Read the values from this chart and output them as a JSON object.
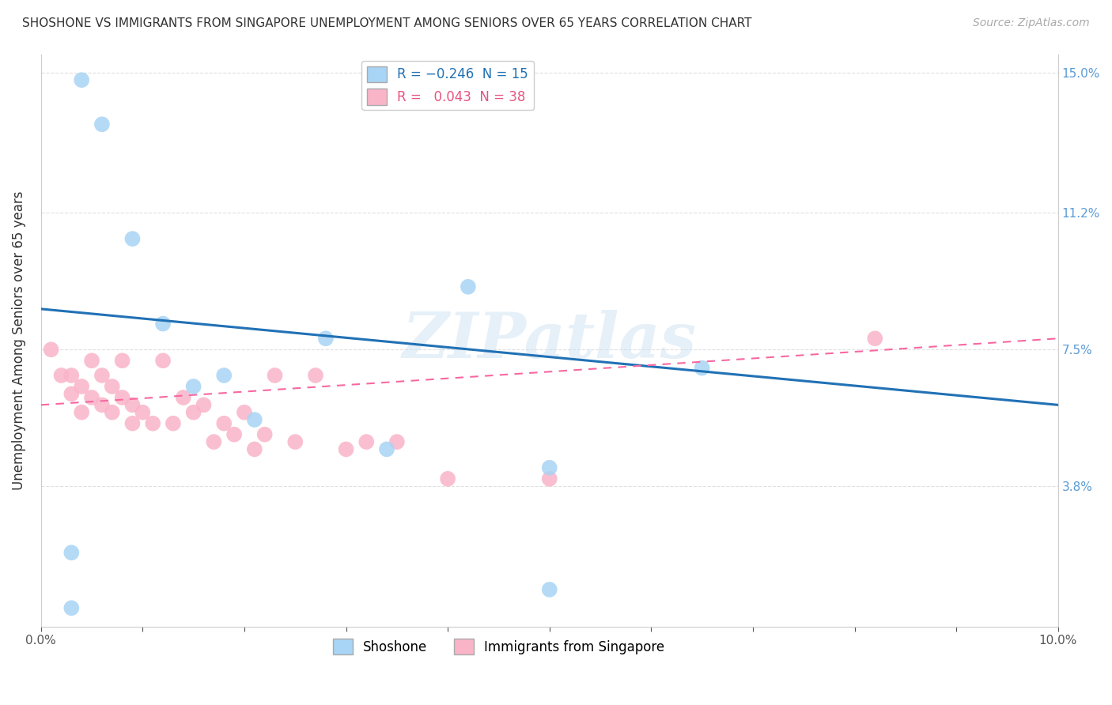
{
  "title": "SHOSHONE VS IMMIGRANTS FROM SINGAPORE UNEMPLOYMENT AMONG SENIORS OVER 65 YEARS CORRELATION CHART",
  "source": "Source: ZipAtlas.com",
  "ylabel": "Unemployment Among Seniors over 65 years",
  "xlim": [
    0.0,
    0.1
  ],
  "ylim": [
    0.0,
    0.155
  ],
  "yticks": [
    0.038,
    0.075,
    0.112,
    0.15
  ],
  "ytick_labels": [
    "3.8%",
    "7.5%",
    "11.2%",
    "15.0%"
  ],
  "xticks": [
    0.0,
    0.01,
    0.02,
    0.03,
    0.04,
    0.05,
    0.06,
    0.07,
    0.08,
    0.09,
    0.1
  ],
  "xtick_labels": [
    "0.0%",
    "",
    "",
    "",
    "",
    "",
    "",
    "",
    "",
    "",
    "10.0%"
  ],
  "watermark": "ZIPatlas",
  "shoshone": {
    "R": -0.246,
    "N": 15,
    "color": "#a8d4f5",
    "x": [
      0.004,
      0.006,
      0.009,
      0.012,
      0.015,
      0.018,
      0.021,
      0.028,
      0.034,
      0.042,
      0.05,
      0.065,
      0.003,
      0.003,
      0.05
    ],
    "y": [
      0.148,
      0.136,
      0.105,
      0.082,
      0.065,
      0.068,
      0.056,
      0.078,
      0.048,
      0.092,
      0.043,
      0.07,
      0.02,
      0.005,
      0.01
    ]
  },
  "singapore": {
    "R": 0.043,
    "N": 38,
    "color": "#f9b4c8",
    "x": [
      0.001,
      0.002,
      0.003,
      0.003,
      0.004,
      0.004,
      0.005,
      0.005,
      0.006,
      0.006,
      0.007,
      0.007,
      0.008,
      0.008,
      0.009,
      0.009,
      0.01,
      0.011,
      0.012,
      0.013,
      0.014,
      0.015,
      0.016,
      0.017,
      0.018,
      0.019,
      0.02,
      0.021,
      0.022,
      0.023,
      0.025,
      0.027,
      0.03,
      0.032,
      0.035,
      0.04,
      0.05,
      0.082
    ],
    "y": [
      0.075,
      0.068,
      0.068,
      0.063,
      0.065,
      0.058,
      0.072,
      0.062,
      0.068,
      0.06,
      0.065,
      0.058,
      0.072,
      0.062,
      0.06,
      0.055,
      0.058,
      0.055,
      0.072,
      0.055,
      0.062,
      0.058,
      0.06,
      0.05,
      0.055,
      0.052,
      0.058,
      0.048,
      0.052,
      0.068,
      0.05,
      0.068,
      0.048,
      0.05,
      0.05,
      0.04,
      0.04,
      0.078
    ]
  },
  "line_blue_color": "#2171b5",
  "line_pink_color": "#f768a1",
  "legend_box_color_blue": "#a8d4f5",
  "legend_box_color_pink": "#f9b4c8",
  "background_color": "#ffffff",
  "grid_color": "#e0e0e0",
  "blue_line_y0": 0.086,
  "blue_line_y1": 0.06,
  "pink_line_y0": 0.06,
  "pink_line_y1": 0.078
}
